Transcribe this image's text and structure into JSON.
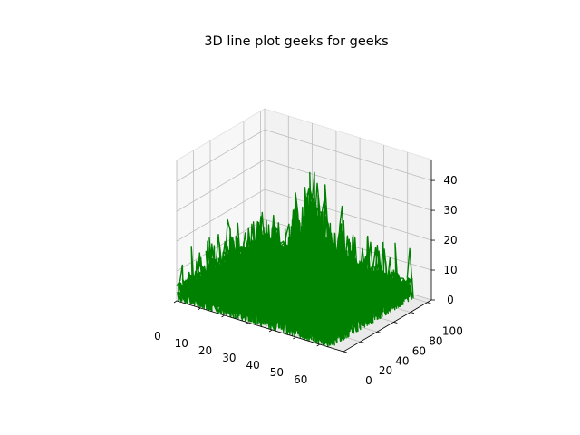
{
  "chart_data": {
    "type": "line",
    "projection": "3d",
    "title": "3D line plot geeks for geeks",
    "xlabel": "",
    "ylabel": "",
    "zlabel": "",
    "xlim": [
      0,
      70
    ],
    "ylim": [
      0,
      105
    ],
    "zlim": [
      0,
      47
    ],
    "x_ticks": [
      "0",
      "10",
      "20",
      "30",
      "40",
      "50",
      "60"
    ],
    "y_ticks": [
      "0",
      "20",
      "40",
      "60",
      "80",
      "100"
    ],
    "z_ticks": [
      "0",
      "10",
      "20",
      "30",
      "40"
    ],
    "line_color": "#008000",
    "pane_color": "#f2f2f2",
    "grid": true,
    "series": [
      {
        "peaks": [
          {
            "x": 2,
            "y": 98,
            "z": 6
          },
          {
            "x": 8,
            "y": 95,
            "z": 15
          },
          {
            "x": 20,
            "y": 85,
            "z": 29
          },
          {
            "x": 14,
            "y": 60,
            "z": 24
          },
          {
            "x": 25,
            "y": 75,
            "z": 25
          },
          {
            "x": 30,
            "y": 70,
            "z": 33
          },
          {
            "x": 33,
            "y": 65,
            "z": 41
          },
          {
            "x": 36,
            "y": 62,
            "z": 42
          },
          {
            "x": 40,
            "y": 55,
            "z": 44
          },
          {
            "x": 44,
            "y": 52,
            "z": 45
          },
          {
            "x": 42,
            "y": 48,
            "z": 43
          },
          {
            "x": 38,
            "y": 45,
            "z": 40
          },
          {
            "x": 46,
            "y": 40,
            "z": 38
          },
          {
            "x": 48,
            "y": 60,
            "z": 36
          },
          {
            "x": 52,
            "y": 30,
            "z": 30
          },
          {
            "x": 55,
            "y": 25,
            "z": 24
          },
          {
            "x": 60,
            "y": 20,
            "z": 22
          },
          {
            "x": 65,
            "y": 15,
            "z": 24
          }
        ]
      }
    ]
  }
}
